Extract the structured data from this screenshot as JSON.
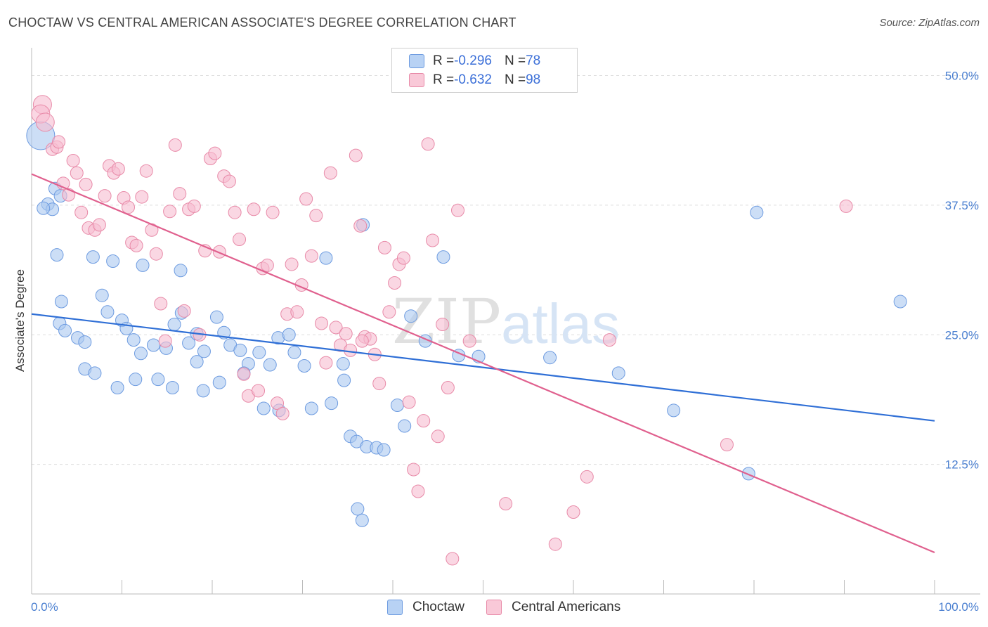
{
  "title": "CHOCTAW VS CENTRAL AMERICAN ASSOCIATE'S DEGREE CORRELATION CHART",
  "source": "Source: ZipAtlas.com",
  "watermark": "ZIPatlas",
  "legend": {
    "choctaw": {
      "r_label": "R = ",
      "r_value": "-0.296",
      "n_label": "N = ",
      "n_value": "78"
    },
    "central": {
      "r_label": "R = ",
      "r_value": "-0.632",
      "n_label": "N = ",
      "n_value": "98"
    }
  },
  "bottom_legend": {
    "choctaw": "Choctaw",
    "central": "Central Americans"
  },
  "colors": {
    "choctaw_fill": "#aac8f0",
    "choctaw_stroke": "#6d9be0",
    "choctaw_line": "#2f6fd6",
    "central_fill": "#f7bcd0",
    "central_stroke": "#e88aa8",
    "central_line": "#e0608e",
    "grid": "#dddddd",
    "axis_text": "#4a7fd0"
  },
  "chart_data": {
    "type": "scatter",
    "title": "CHOCTAW VS CENTRAL AMERICAN ASSOCIATE'S DEGREE CORRELATION CHART",
    "xlabel": "",
    "ylabel": "Associate's Degree",
    "xlim": [
      0,
      100
    ],
    "ylim": [
      0,
      52
    ],
    "x_tick_labels": [
      "0.0%",
      "100.0%"
    ],
    "y_ticks": [
      12.5,
      25.0,
      37.5,
      50.0
    ],
    "y_tick_labels": [
      "12.5%",
      "25.0%",
      "37.5%",
      "50.0%"
    ],
    "legend_position": "top-center",
    "series": [
      {
        "name": "Choctaw",
        "r": -0.296,
        "n": 78,
        "trend": {
          "x": [
            0,
            100
          ],
          "y": [
            27.0,
            16.7
          ]
        },
        "points": [
          [
            1,
            44.2,
            3
          ],
          [
            1.8,
            37.6,
            1
          ],
          [
            2.3,
            37.1,
            1
          ],
          [
            1.3,
            37.2,
            1
          ],
          [
            2.6,
            39.1,
            1
          ],
          [
            3.2,
            38.4,
            1
          ],
          [
            2.8,
            32.7,
            1
          ],
          [
            6.8,
            32.5,
            1
          ],
          [
            9,
            32.1,
            1
          ],
          [
            12.3,
            31.7,
            1
          ],
          [
            16.5,
            31.2,
            1
          ],
          [
            3.3,
            28.2,
            1
          ],
          [
            3.1,
            26.1,
            1
          ],
          [
            3.7,
            25.4,
            1
          ],
          [
            5.1,
            24.7,
            1
          ],
          [
            5.9,
            24.3,
            1
          ],
          [
            7.8,
            28.8,
            1
          ],
          [
            8.4,
            27.2,
            1
          ],
          [
            10.0,
            26.4,
            1
          ],
          [
            10.5,
            25.6,
            1
          ],
          [
            11.3,
            24.5,
            1
          ],
          [
            12.1,
            23.2,
            1
          ],
          [
            13.5,
            24.0,
            1
          ],
          [
            14.9,
            23.7,
            1
          ],
          [
            15.8,
            26.0,
            1
          ],
          [
            16.6,
            27.1,
            1
          ],
          [
            17.4,
            24.2,
            1
          ],
          [
            18.3,
            22.4,
            1
          ],
          [
            19.1,
            23.4,
            1
          ],
          [
            20.5,
            26.7,
            1
          ],
          [
            21.3,
            25.2,
            1
          ],
          [
            22.0,
            24.0,
            1
          ],
          [
            23.1,
            23.5,
            1
          ],
          [
            24.0,
            22.2,
            1
          ],
          [
            25.2,
            23.3,
            1
          ],
          [
            26.4,
            22.1,
            1
          ],
          [
            27.3,
            24.7,
            1
          ],
          [
            28.5,
            25.0,
            1
          ],
          [
            29.1,
            23.3,
            1
          ],
          [
            30.2,
            22.0,
            1
          ],
          [
            5.9,
            21.7,
            1
          ],
          [
            7.0,
            21.3,
            1
          ],
          [
            9.5,
            19.9,
            1
          ],
          [
            11.5,
            20.7,
            1
          ],
          [
            14.0,
            20.7,
            1
          ],
          [
            15.6,
            19.9,
            1
          ],
          [
            19.0,
            19.6,
            1
          ],
          [
            20.8,
            20.4,
            1
          ],
          [
            23.5,
            21.3,
            1
          ],
          [
            25.7,
            17.9,
            1
          ],
          [
            27.4,
            17.7,
            1
          ],
          [
            31.0,
            17.9,
            1
          ],
          [
            33.2,
            18.4,
            1
          ],
          [
            34.6,
            20.6,
            1
          ],
          [
            34.5,
            22.2,
            1
          ],
          [
            35.3,
            15.2,
            1
          ],
          [
            36.0,
            14.7,
            1
          ],
          [
            37.1,
            14.2,
            1
          ],
          [
            38.2,
            14.1,
            1
          ],
          [
            39.0,
            13.9,
            1
          ],
          [
            40.5,
            18.2,
            1
          ],
          [
            41.3,
            16.2,
            1
          ],
          [
            42.0,
            26.8,
            1
          ],
          [
            43.6,
            24.4,
            1
          ],
          [
            47.3,
            23.0,
            1
          ],
          [
            49.5,
            22.9,
            1
          ],
          [
            32.6,
            32.4,
            1
          ],
          [
            36.7,
            35.6,
            1
          ],
          [
            45.6,
            32.5,
            1
          ],
          [
            57.4,
            22.8,
            1
          ],
          [
            65.0,
            21.3,
            1
          ],
          [
            71.1,
            17.7,
            1
          ],
          [
            79.4,
            11.6,
            1
          ],
          [
            80.3,
            36.8,
            1
          ],
          [
            96.2,
            28.2,
            1
          ],
          [
            36.1,
            8.2,
            1
          ],
          [
            36.6,
            7.1,
            1
          ],
          [
            18.3,
            25.1,
            1
          ]
        ]
      },
      {
        "name": "Central Americans",
        "r": -0.632,
        "n": 98,
        "trend": {
          "x": [
            0,
            100
          ],
          "y": [
            40.5,
            4.0
          ]
        },
        "points": [
          [
            1.2,
            47.2,
            2
          ],
          [
            1.0,
            46.3,
            2
          ],
          [
            1.5,
            45.5,
            2
          ],
          [
            2.3,
            42.9,
            1
          ],
          [
            2.8,
            43.1,
            1
          ],
          [
            3.0,
            43.6,
            1
          ],
          [
            3.5,
            39.6,
            1
          ],
          [
            4.1,
            38.5,
            1
          ],
          [
            4.6,
            41.8,
            1
          ],
          [
            5.0,
            40.6,
            1
          ],
          [
            5.5,
            36.8,
            1
          ],
          [
            6.0,
            39.5,
            1
          ],
          [
            6.3,
            35.3,
            1
          ],
          [
            7.0,
            35.1,
            1
          ],
          [
            7.5,
            35.6,
            1
          ],
          [
            8.1,
            38.4,
            1
          ],
          [
            8.6,
            41.3,
            1
          ],
          [
            9.1,
            40.6,
            1
          ],
          [
            9.6,
            41.0,
            1
          ],
          [
            10.2,
            38.2,
            1
          ],
          [
            10.7,
            37.3,
            1
          ],
          [
            11.1,
            33.9,
            1
          ],
          [
            11.6,
            33.6,
            1
          ],
          [
            12.2,
            38.3,
            1
          ],
          [
            12.7,
            40.8,
            1
          ],
          [
            13.3,
            35.1,
            1
          ],
          [
            13.8,
            32.8,
            1
          ],
          [
            14.3,
            28.0,
            1
          ],
          [
            14.8,
            24.4,
            1
          ],
          [
            15.3,
            36.9,
            1
          ],
          [
            15.9,
            43.3,
            1
          ],
          [
            16.4,
            38.6,
            1
          ],
          [
            16.9,
            27.3,
            1
          ],
          [
            17.4,
            37.1,
            1
          ],
          [
            18.0,
            37.4,
            1
          ],
          [
            18.6,
            25.0,
            1
          ],
          [
            19.2,
            33.1,
            1
          ],
          [
            19.8,
            42.0,
            1
          ],
          [
            20.3,
            42.5,
            1
          ],
          [
            20.8,
            33.0,
            1
          ],
          [
            21.3,
            40.3,
            1
          ],
          [
            21.9,
            39.8,
            1
          ],
          [
            22.5,
            36.8,
            1
          ],
          [
            23.0,
            34.2,
            1
          ],
          [
            23.5,
            21.2,
            1
          ],
          [
            24.0,
            19.1,
            1
          ],
          [
            24.6,
            37.1,
            1
          ],
          [
            25.1,
            19.6,
            1
          ],
          [
            25.6,
            31.4,
            1
          ],
          [
            26.1,
            31.7,
            1
          ],
          [
            26.7,
            36.8,
            1
          ],
          [
            27.2,
            18.4,
            1
          ],
          [
            27.8,
            17.4,
            1
          ],
          [
            28.3,
            27.0,
            1
          ],
          [
            28.8,
            31.8,
            1
          ],
          [
            29.4,
            27.2,
            1
          ],
          [
            29.9,
            29.8,
            1
          ],
          [
            30.4,
            38.1,
            1
          ],
          [
            31.0,
            32.6,
            1
          ],
          [
            31.5,
            36.5,
            1
          ],
          [
            32.1,
            26.1,
            1
          ],
          [
            32.6,
            22.3,
            1
          ],
          [
            33.1,
            40.6,
            1
          ],
          [
            33.7,
            25.7,
            1
          ],
          [
            34.2,
            24.0,
            1
          ],
          [
            34.8,
            25.1,
            1
          ],
          [
            35.3,
            23.5,
            1
          ],
          [
            35.9,
            42.3,
            1
          ],
          [
            36.4,
            35.5,
            1
          ],
          [
            36.9,
            24.8,
            1
          ],
          [
            37.5,
            24.6,
            1
          ],
          [
            38.0,
            23.1,
            1
          ],
          [
            38.5,
            20.3,
            1
          ],
          [
            39.1,
            33.4,
            1
          ],
          [
            39.6,
            27.2,
            1
          ],
          [
            40.2,
            30.0,
            1
          ],
          [
            40.7,
            31.8,
            1
          ],
          [
            41.2,
            32.4,
            1
          ],
          [
            41.8,
            18.5,
            1
          ],
          [
            42.3,
            12.0,
            1
          ],
          [
            42.8,
            9.9,
            1
          ],
          [
            43.4,
            16.7,
            1
          ],
          [
            43.9,
            43.4,
            1
          ],
          [
            44.4,
            34.1,
            1
          ],
          [
            45.0,
            15.2,
            1
          ],
          [
            45.5,
            26.0,
            1
          ],
          [
            46.1,
            19.9,
            1
          ],
          [
            46.6,
            3.4,
            1
          ],
          [
            47.2,
            37.0,
            1
          ],
          [
            48.5,
            24.4,
            1
          ],
          [
            52.5,
            8.7,
            1
          ],
          [
            58.0,
            4.8,
            1
          ],
          [
            60.0,
            7.9,
            1
          ],
          [
            61.5,
            11.3,
            1
          ],
          [
            64.0,
            24.5,
            1
          ],
          [
            77.0,
            14.4,
            1
          ],
          [
            90.2,
            37.4,
            1
          ],
          [
            36.6,
            24.4,
            1
          ]
        ]
      }
    ]
  }
}
